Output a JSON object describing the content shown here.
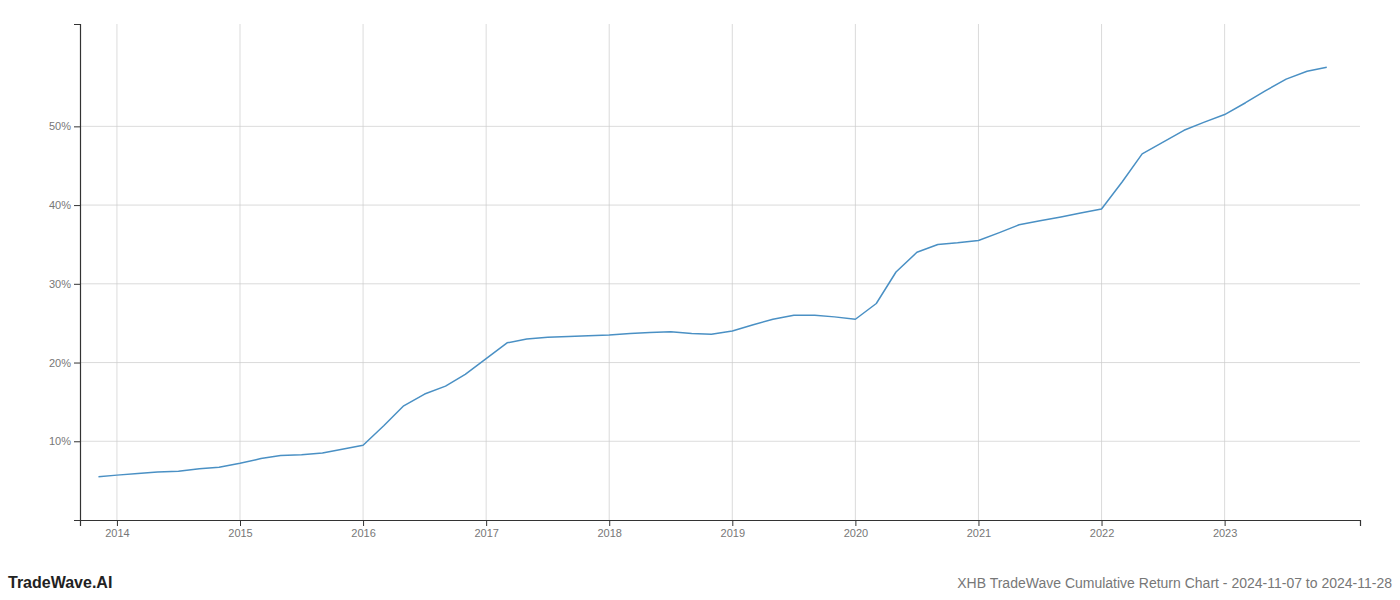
{
  "chart_data": {
    "type": "line",
    "title": "XHB TradeWave Cumulative Return Chart - 2024-11-07 to 2024-11-28",
    "annotations": [
      "TradeWave.AI"
    ],
    "x": [
      2013.85,
      2014.0,
      2014.17,
      2014.33,
      2014.5,
      2014.67,
      2014.83,
      2015.0,
      2015.17,
      2015.33,
      2015.5,
      2015.67,
      2015.83,
      2016.0,
      2016.17,
      2016.33,
      2016.5,
      2016.67,
      2016.83,
      2017.0,
      2017.17,
      2017.33,
      2017.5,
      2017.67,
      2017.83,
      2018.0,
      2018.17,
      2018.33,
      2018.5,
      2018.67,
      2018.83,
      2019.0,
      2019.17,
      2019.33,
      2019.5,
      2019.67,
      2019.83,
      2020.0,
      2020.17,
      2020.33,
      2020.5,
      2020.67,
      2020.83,
      2021.0,
      2021.17,
      2021.33,
      2021.5,
      2021.67,
      2021.83,
      2022.0,
      2022.17,
      2022.33,
      2022.5,
      2022.67,
      2022.83,
      2023.0,
      2023.17,
      2023.33,
      2023.5,
      2023.67,
      2023.83
    ],
    "values": [
      5.5,
      5.7,
      5.9,
      6.1,
      6.2,
      6.5,
      6.7,
      7.2,
      7.8,
      8.2,
      8.3,
      8.5,
      9.0,
      9.5,
      12.0,
      14.5,
      16.0,
      17.0,
      18.5,
      20.5,
      22.5,
      23.0,
      23.2,
      23.3,
      23.4,
      23.5,
      23.7,
      23.8,
      23.9,
      23.7,
      23.6,
      24.0,
      24.8,
      25.5,
      26.0,
      26.0,
      25.8,
      25.5,
      27.5,
      31.5,
      34.0,
      35.0,
      35.2,
      35.5,
      36.5,
      37.5,
      38.0,
      38.5,
      39.0,
      39.5,
      43.0,
      46.5,
      48.0,
      49.5,
      50.5,
      51.5,
      53.0,
      54.5,
      56.0,
      57.0,
      57.5
    ],
    "color": "#4a90c4",
    "xlim": [
      2013.7,
      2024.1
    ],
    "ylim": [
      0,
      63
    ],
    "xticks": [
      2014,
      2015,
      2016,
      2017,
      2018,
      2019,
      2020,
      2021,
      2022,
      2023
    ],
    "yticks": [
      {
        "value": 10,
        "label": "10%"
      },
      {
        "value": 20,
        "label": "20%"
      },
      {
        "value": 30,
        "label": "30%"
      },
      {
        "value": 40,
        "label": "40%"
      },
      {
        "value": 50,
        "label": "50%"
      }
    ],
    "grid": true
  }
}
